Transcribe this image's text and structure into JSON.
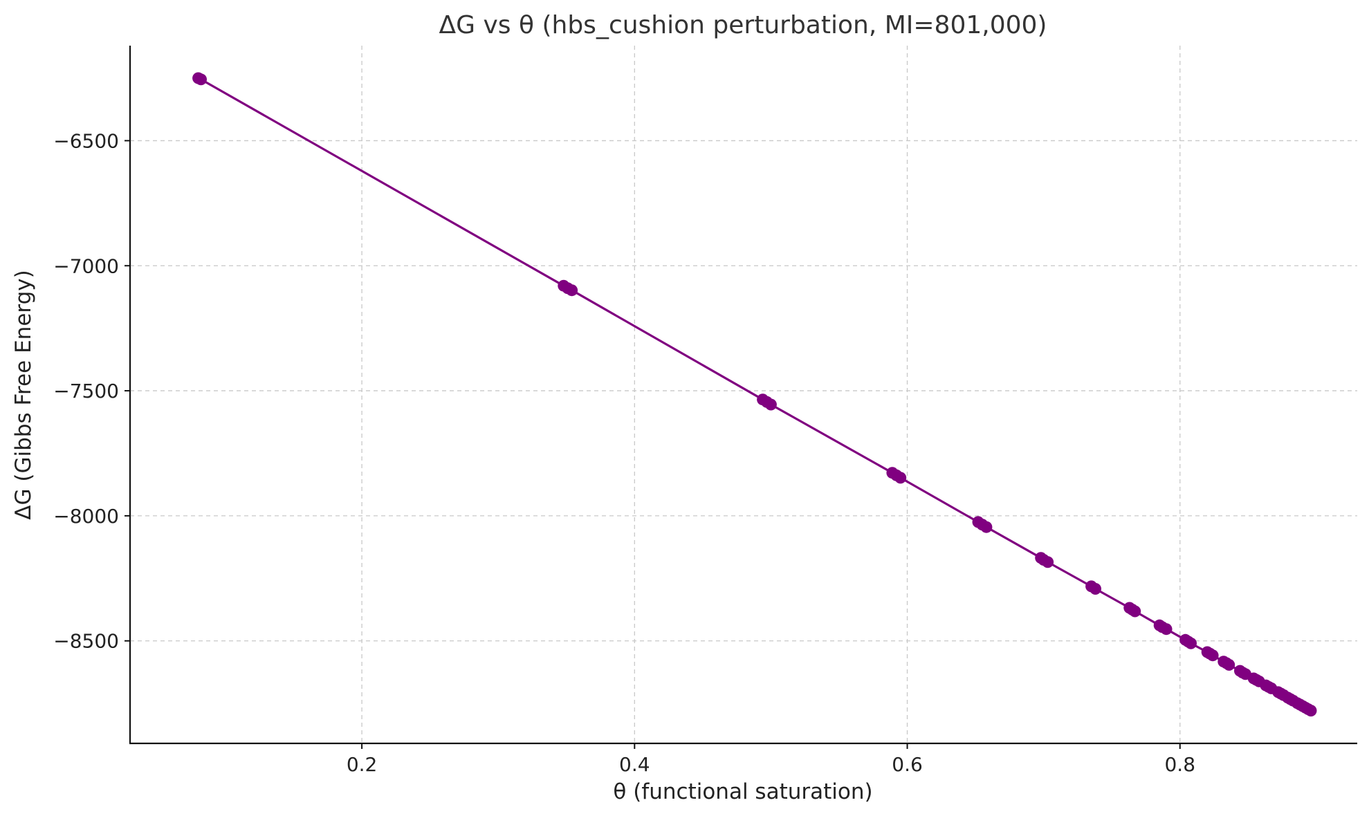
{
  "chart_data": {
    "type": "line",
    "title": "ΔG vs θ (hbs_cushion perturbation, MI=801,000)",
    "xlabel": "θ (functional saturation)",
    "ylabel": "ΔG (Gibbs Free Energy)",
    "xlim": [
      0.03,
      0.93
    ],
    "ylim": [
      -8910,
      -6120
    ],
    "x_ticks": [
      0.2,
      0.4,
      0.6,
      0.8
    ],
    "x_tick_labels": [
      "0.2",
      "0.4",
      "0.6",
      "0.8"
    ],
    "y_ticks": [
      -6500,
      -7000,
      -7500,
      -8000,
      -8500
    ],
    "y_tick_labels": [
      "−6500",
      "−7000",
      "−7500",
      "−8000",
      "−8500"
    ],
    "grid": true,
    "marker": "circle",
    "colors": {
      "series": "#800080"
    },
    "series": [
      {
        "x": [
          0.08,
          0.082,
          0.348,
          0.351,
          0.354,
          0.494,
          0.497,
          0.5,
          0.589,
          0.592,
          0.595,
          0.652,
          0.655,
          0.658,
          0.698,
          0.7,
          0.703,
          0.735,
          0.738,
          0.763,
          0.765,
          0.767,
          0.785,
          0.787,
          0.79,
          0.804,
          0.806,
          0.808,
          0.82,
          0.822,
          0.824,
          0.832,
          0.834,
          0.836,
          0.844,
          0.846,
          0.848,
          0.854,
          0.856,
          0.858,
          0.863,
          0.865,
          0.867,
          0.872,
          0.874,
          0.876,
          0.879,
          0.881,
          0.883,
          0.886,
          0.888,
          0.89,
          0.892,
          0.894,
          0.896
        ],
        "y": [
          -6250,
          -6255,
          -7080,
          -7090,
          -7098,
          -7535,
          -7545,
          -7555,
          -7828,
          -7838,
          -7848,
          -8025,
          -8035,
          -8045,
          -8168,
          -8176,
          -8185,
          -8282,
          -8292,
          -8368,
          -8375,
          -8382,
          -8438,
          -8445,
          -8453,
          -8496,
          -8503,
          -8510,
          -8545,
          -8551,
          -8558,
          -8583,
          -8589,
          -8596,
          -8620,
          -8627,
          -8633,
          -8650,
          -8656,
          -8662,
          -8678,
          -8684,
          -8690,
          -8705,
          -8711,
          -8717,
          -8727,
          -8733,
          -8739,
          -8749,
          -8755,
          -8761,
          -8767,
          -8773,
          -8779
        ]
      }
    ]
  }
}
